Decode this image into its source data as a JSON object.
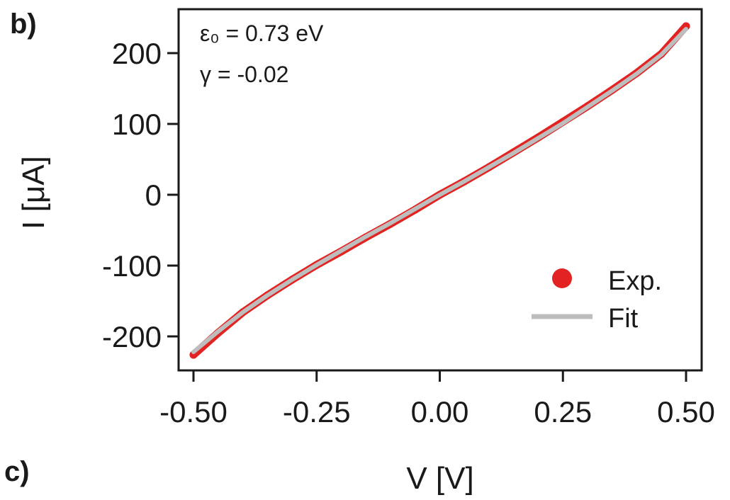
{
  "panel_labels": {
    "top": "b)",
    "bottom": "c)"
  },
  "annotations": {
    "line1": "ε₀ = 0.73 eV",
    "line2": "γ = -0.02"
  },
  "legend": {
    "exp": "Exp.",
    "fit": "Fit"
  },
  "colors": {
    "exp": "#e32222",
    "fit": "#bdbdbd",
    "axis": "#1a1a1a"
  },
  "chart_data": {
    "type": "line",
    "title": "",
    "xlabel": "V [V]",
    "ylabel": "I [μA]",
    "xlim": [
      -0.52,
      0.52
    ],
    "ylim": [
      -250,
      250
    ],
    "x_ticks": [
      -0.5,
      -0.25,
      0.0,
      0.25,
      0.5
    ],
    "x_tick_labels": [
      "-0.50",
      "-0.25",
      "0.00",
      "0.25",
      "0.50"
    ],
    "y_ticks": [
      -200,
      -100,
      0,
      100,
      200
    ],
    "y_tick_labels": [
      "-200",
      "-100",
      "0",
      "100",
      "200"
    ],
    "legend_position": "bottom-right",
    "grid": false,
    "series": [
      {
        "name": "Exp.",
        "x": [
          -0.5,
          -0.45,
          -0.4,
          -0.35,
          -0.3,
          -0.25,
          -0.2,
          -0.15,
          -0.1,
          -0.05,
          0.0,
          0.05,
          0.1,
          0.15,
          0.2,
          0.25,
          0.3,
          0.35,
          0.4,
          0.45,
          0.5
        ],
        "y": [
          -226,
          -195,
          -166,
          -142,
          -120,
          -99,
          -80,
          -60,
          -41,
          -21,
          0,
          19,
          39,
          60,
          81,
          103,
          125,
          148,
          172,
          199,
          238
        ]
      },
      {
        "name": "Fit",
        "x": [
          -0.5,
          -0.45,
          -0.4,
          -0.35,
          -0.3,
          -0.25,
          -0.2,
          -0.15,
          -0.1,
          -0.05,
          0.0,
          0.05,
          0.1,
          0.15,
          0.2,
          0.25,
          0.3,
          0.35,
          0.4,
          0.45,
          0.5
        ],
        "y": [
          -222,
          -193,
          -166,
          -142,
          -120,
          -99,
          -79,
          -59,
          -40,
          -20,
          0,
          19,
          39,
          59,
          80,
          101,
          124,
          147,
          171,
          198,
          234
        ]
      }
    ]
  }
}
